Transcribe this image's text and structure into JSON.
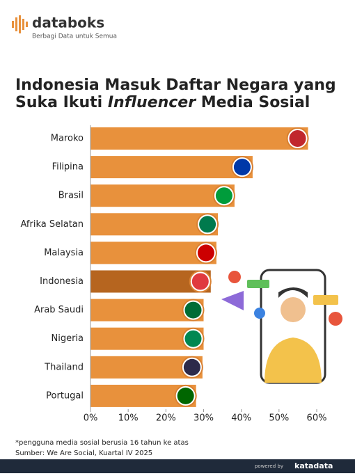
{
  "brand": {
    "name": "databoks",
    "tagline": "Berbagi Data untuk Semua"
  },
  "chart_data": {
    "type": "bar",
    "orientation": "horizontal",
    "title": {
      "before": "Indonesia Masuk Daftar Negara yang",
      "line2": "Suka Ikuti ",
      "italic": "Influencer",
      "after": " Media Sosial"
    },
    "categories": [
      "Maroko",
      "Filipina",
      "Brasil",
      "Afrika Selatan",
      "Malaysia",
      "Indonesia",
      "Arab Saudi",
      "Nigeria",
      "Thailand",
      "Portugal"
    ],
    "values": [
      57.7,
      43,
      38.2,
      33.8,
      33.4,
      31.9,
      30,
      30,
      29.7,
      28
    ],
    "color": "#e8913c",
    "highlight": {
      "category": "Indonesia",
      "color": "#b6651f"
    },
    "xlim": [
      0,
      60
    ],
    "xticks": [
      {
        "value": 0,
        "label": "0%"
      },
      {
        "value": 10,
        "label": "10%"
      },
      {
        "value": 20,
        "label": "20%"
      },
      {
        "value": 30,
        "label": "30%"
      },
      {
        "value": 40,
        "label": "40%"
      },
      {
        "value": 50,
        "label": "50%"
      },
      {
        "value": 60,
        "label": "60%"
      }
    ],
    "grid": false
  },
  "footnote": "*pengguna media sosial berusia 16 tahun ke atas",
  "source": "Sumber: We Are Social, Kuartal IV 2025",
  "footer": {
    "powered": "powered by",
    "company": "katadata"
  }
}
